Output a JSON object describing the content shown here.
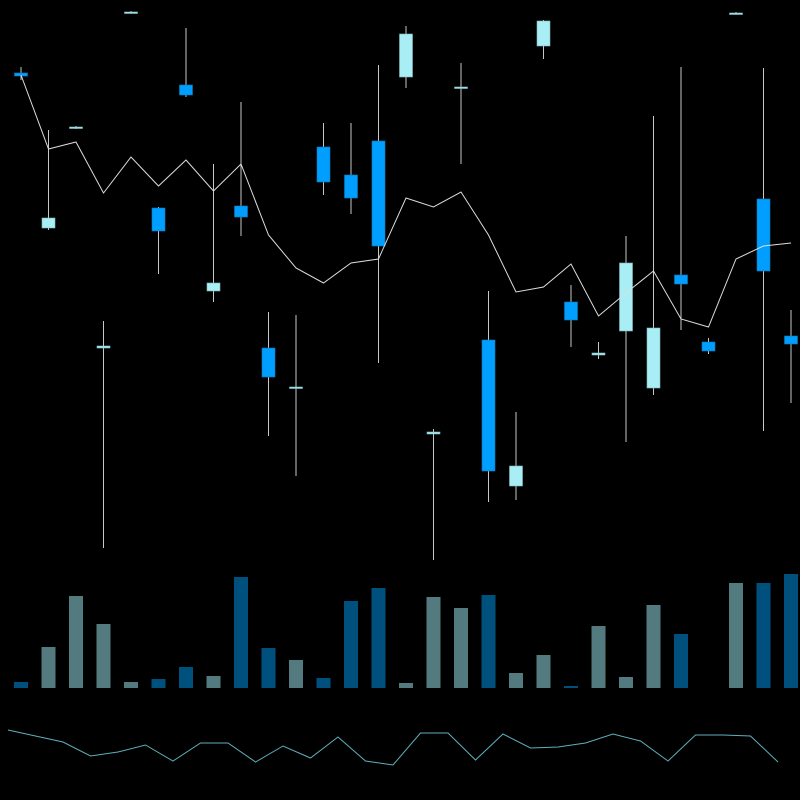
{
  "chart_data": [
    {
      "type": "candlestick",
      "panel": "price",
      "grid": false,
      "legend": "none",
      "colors": {
        "bullish": "#aaeef5",
        "bearish": "#009fff",
        "wick": "#c8c8c8",
        "moving_average": "#dddddd"
      },
      "candles": [
        {
          "o": 72.7,
          "h": 73.3,
          "l": 72.0,
          "c": 72.4
        },
        {
          "o": 57.2,
          "h": 67.0,
          "l": 57.0,
          "c": 58.2
        },
        {
          "o": 67.2,
          "h": 67.4,
          "l": 67.1,
          "c": 67.3
        },
        {
          "o": 45.2,
          "h": 47.9,
          "l": 25.2,
          "c": 45.4
        },
        {
          "o": 78.8,
          "h": 78.9,
          "l": 78.7,
          "c": 78.8
        },
        {
          "o": 59.2,
          "h": 59.3,
          "l": 52.6,
          "c": 56.9
        },
        {
          "o": 71.5,
          "h": 77.2,
          "l": 70.3,
          "c": 70.5
        },
        {
          "o": 50.9,
          "h": 63.6,
          "l": 49.8,
          "c": 51.7
        },
        {
          "o": 59.4,
          "h": 69.8,
          "l": 56.4,
          "c": 58.3
        },
        {
          "o": 45.2,
          "h": 48.8,
          "l": 36.4,
          "c": 42.3
        },
        {
          "o": 41.2,
          "h": 48.5,
          "l": 32.4,
          "c": 41.3
        },
        {
          "o": 65.3,
          "h": 67.7,
          "l": 60.5,
          "c": 61.8
        },
        {
          "o": 62.5,
          "h": 67.7,
          "l": 58.6,
          "c": 60.2
        },
        {
          "o": 65.9,
          "h": 73.5,
          "l": 43.7,
          "c": 55.4
        },
        {
          "o": 72.3,
          "h": 77.4,
          "l": 71.2,
          "c": 76.6
        },
        {
          "o": 36.6,
          "h": 37.1,
          "l": 24.0,
          "c": 36.8
        },
        {
          "o": 71.2,
          "h": 73.7,
          "l": 63.6,
          "c": 71.3
        },
        {
          "o": 46.0,
          "h": 50.9,
          "l": 29.8,
          "c": 32.9
        },
        {
          "o": 31.4,
          "h": 38.8,
          "l": 30.0,
          "c": 33.4
        },
        {
          "o": 75.4,
          "h": 78.0,
          "l": 74.1,
          "c": 77.9
        },
        {
          "o": 49.8,
          "h": 51.5,
          "l": 45.3,
          "c": 48.0
        },
        {
          "o": 44.5,
          "h": 45.8,
          "l": 44.1,
          "c": 44.7
        },
        {
          "o": 46.9,
          "h": 56.4,
          "l": 35.8,
          "c": 53.7
        },
        {
          "o": 41.2,
          "h": 68.4,
          "l": 40.5,
          "c": 47.2
        },
        {
          "o": 52.5,
          "h": 73.3,
          "l": 47.0,
          "c": 51.6
        },
        {
          "o": 45.8,
          "h": 46.2,
          "l": 44.6,
          "c": 44.9
        },
        {
          "o": 78.7,
          "h": 78.8,
          "l": 78.6,
          "c": 78.7
        },
        {
          "o": 60.1,
          "h": 73.2,
          "l": 36.9,
          "c": 52.9
        },
        {
          "o": 46.4,
          "h": 49.0,
          "l": 39.7,
          "c": 45.6
        }
      ],
      "moving_average": [
        72.5,
        65.1,
        65.8,
        60.7,
        64.3,
        61.4,
        64.0,
        60.9,
        63.6,
        56.5,
        53.2,
        51.7,
        53.7,
        54.1,
        60.2,
        59.3,
        60.8,
        56.5,
        50.8,
        51.3,
        53.6,
        48.4,
        50.7,
        52.9,
        48.1,
        47.3,
        54.1,
        55.4,
        55.7
      ]
    },
    {
      "type": "bar",
      "panel": "volume",
      "grid": false,
      "colors": {
        "bullish": "#537a7e",
        "bearish": "#00507e"
      },
      "values": [
        6,
        41,
        92,
        64,
        6,
        9,
        21,
        12,
        111,
        40,
        28,
        10,
        87,
        100,
        5,
        91,
        80,
        93,
        15,
        33,
        2,
        62,
        11,
        83,
        54,
        0,
        105,
        105,
        114
      ]
    },
    {
      "type": "line",
      "panel": "indicator",
      "grid": false,
      "color": "#5fb0bc",
      "values": [
        50,
        44,
        38,
        24,
        28,
        35,
        19,
        37,
        37,
        18,
        34,
        22,
        43,
        19,
        15,
        47,
        47,
        20,
        46,
        32,
        33,
        37,
        46,
        39,
        19,
        45,
        45,
        44,
        18
      ]
    }
  ]
}
